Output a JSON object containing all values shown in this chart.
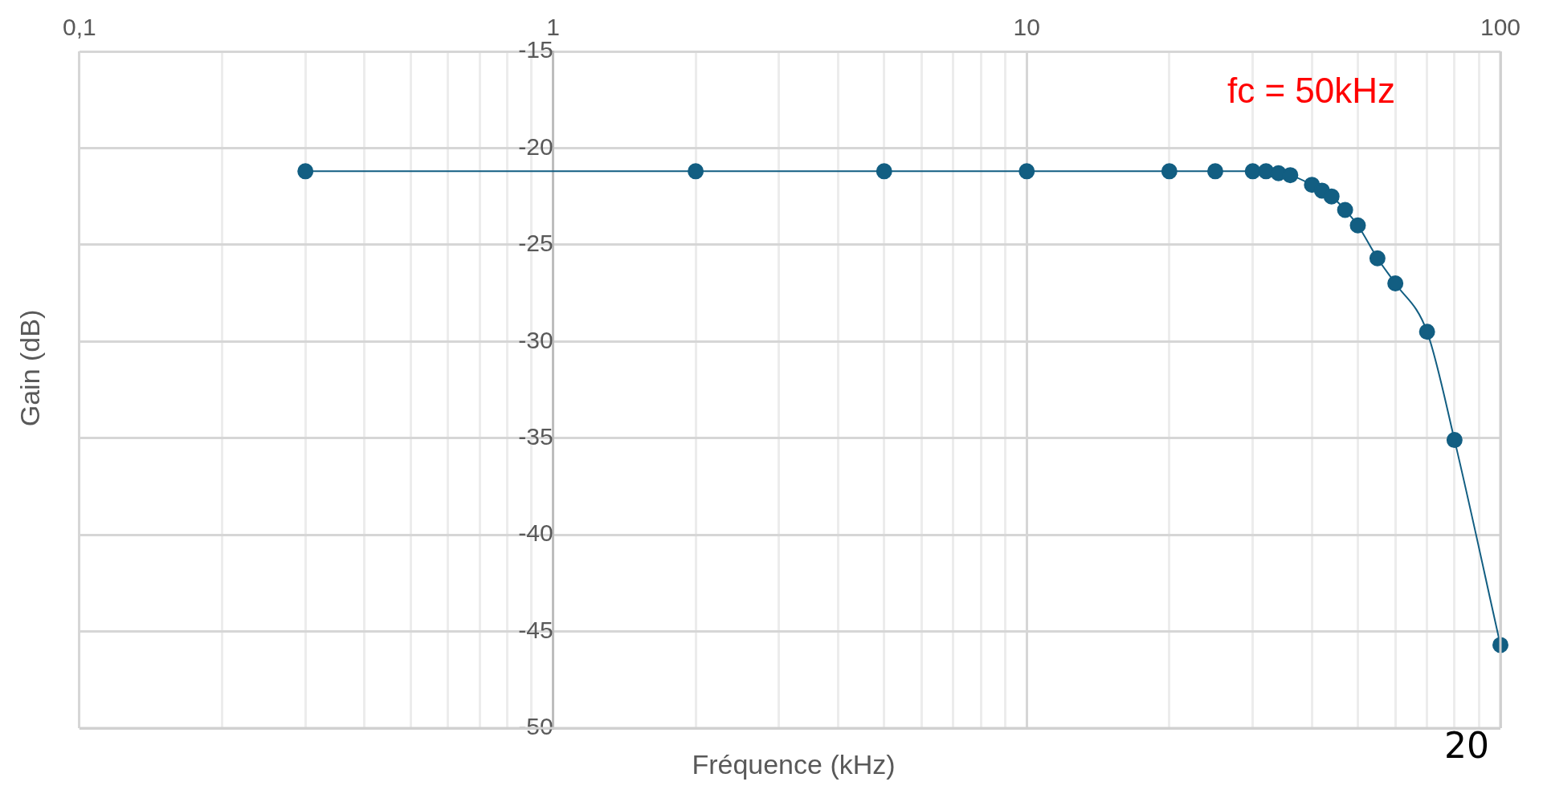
{
  "chart_data": {
    "type": "line",
    "xlabel": "Fréquence (kHz)",
    "ylabel": "Gain (dB)",
    "x": [
      0.3,
      2,
      5,
      10,
      20,
      25,
      30,
      32,
      34,
      36,
      40,
      42,
      44,
      47,
      50,
      55,
      60,
      70,
      80,
      100
    ],
    "series": [
      {
        "color": "#125e82",
        "values": [
          -21.2,
          -21.2,
          -21.2,
          -21.2,
          -21.2,
          -21.2,
          -21.2,
          -21.2,
          -21.3,
          -21.4,
          -21.9,
          -22.2,
          -22.5,
          -23.2,
          -24.0,
          -25.7,
          -27.0,
          -29.5,
          -35.1,
          -45.7
        ]
      }
    ],
    "log": "x",
    "xlim": [
      0.1,
      100
    ],
    "ylim": [
      -50,
      -15
    ],
    "xticks": [
      {
        "value": 0.1,
        "label": "0,1"
      },
      {
        "value": 0.2,
        "label": null
      },
      {
        "value": 0.3,
        "label": null
      },
      {
        "value": 0.4,
        "label": null
      },
      {
        "value": 0.5,
        "label": null
      },
      {
        "value": 0.6,
        "label": null
      },
      {
        "value": 0.7,
        "label": null
      },
      {
        "value": 0.8,
        "label": null
      },
      {
        "value": 0.9,
        "label": null
      },
      1,
      {
        "value": 2,
        "label": null
      },
      {
        "value": 3,
        "label": null
      },
      {
        "value": 4,
        "label": null
      },
      {
        "value": 5,
        "label": null
      },
      {
        "value": 6,
        "label": null
      },
      {
        "value": 7,
        "label": null
      },
      {
        "value": 8,
        "label": null
      },
      {
        "value": 9,
        "label": null
      },
      10,
      {
        "value": 20,
        "label": null
      },
      {
        "value": 30,
        "label": null
      },
      {
        "value": 40,
        "label": null
      },
      {
        "value": 50,
        "label": null
      },
      {
        "value": 60,
        "label": null
      },
      {
        "value": 70,
        "label": null
      },
      {
        "value": 80,
        "label": null
      },
      {
        "value": 90,
        "label": null
      },
      100
    ],
    "yticks": [
      -50,
      -45,
      -40,
      -35,
      -30,
      -25,
      -20,
      -15
    ],
    "grid": true,
    "marker": "circle",
    "line_style": "solid",
    "legend": false,
    "annotations": [
      "fc = 50kHz",
      "20"
    ]
  }
}
